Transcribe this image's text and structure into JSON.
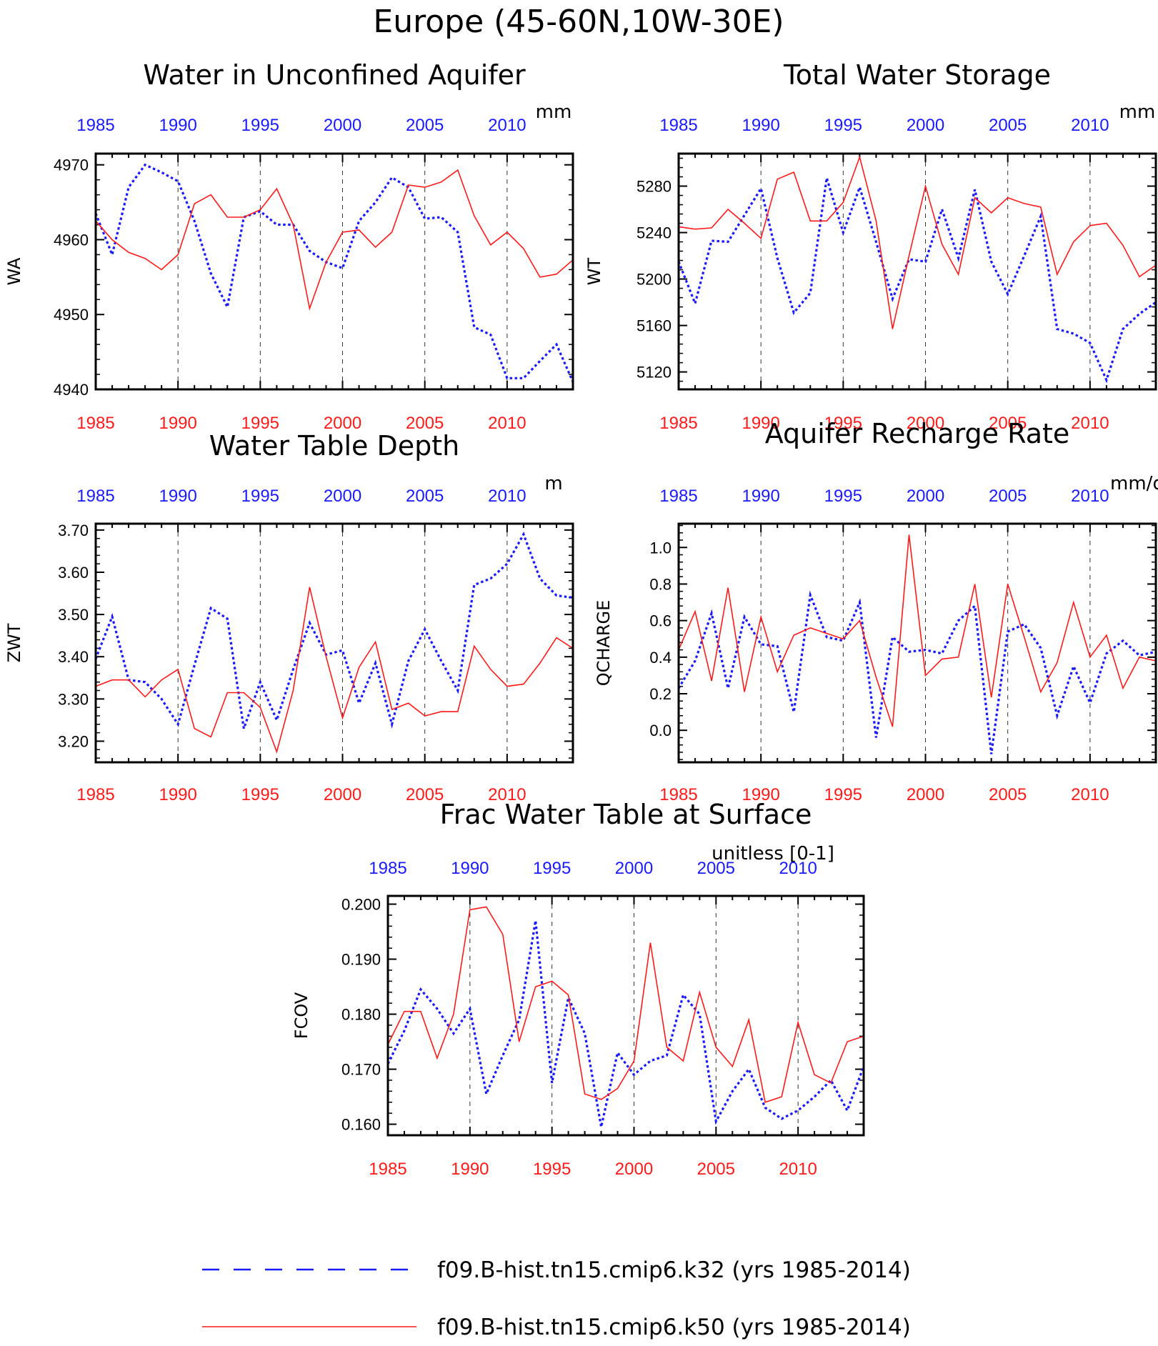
{
  "title": "Europe (45-60N,10W-30E)",
  "colors": {
    "k32": "#1a1aff",
    "k50": "#ff1a1a",
    "axis": "#000000",
    "grid": "#000000"
  },
  "legend": {
    "k32": "f09.B-hist.tn15.cmip6.k32 (yrs 1985-2014)",
    "k50": "f09.B-hist.tn15.cmip6.k50 (yrs 1985-2014)"
  },
  "chart_data": [
    {
      "type": "line",
      "title": "Water in Unconfined Aquifer",
      "ylabel": "WA",
      "units": "mm",
      "xlim": [
        1985,
        2014
      ],
      "ylim": [
        4940,
        4971.5
      ],
      "yticks": [
        "4940",
        "4950",
        "4960",
        "4970"
      ],
      "yticks_values": [
        4940,
        4950,
        4960,
        4970
      ],
      "xticks": [
        "1985",
        "1990",
        "1995",
        "2000",
        "2005",
        "2010"
      ],
      "x": [
        1985,
        1986,
        1987,
        1988,
        1989,
        1990,
        1991,
        1992,
        1993,
        1994,
        1995,
        1996,
        1997,
        1998,
        1999,
        2000,
        2001,
        2002,
        2003,
        2004,
        2005,
        2006,
        2007,
        2008,
        2009,
        2010,
        2011,
        2012,
        2013,
        2014
      ],
      "series": [
        {
          "key": "k32",
          "style": "dotted",
          "values": [
            4963.5,
            4958,
            4967,
            4970,
            4969,
            4967.8,
            4962.5,
            4955.5,
            4951,
            4963,
            4963.8,
            4962,
            4962,
            4958.5,
            4957,
            4956.2,
            4962.5,
            4965,
            4968.3,
            4967,
            4962.8,
            4963,
            4961,
            4948.3,
            4947.3,
            4941.5,
            4941.5,
            4943.8,
            4946,
            4941
          ]
        },
        {
          "key": "k50",
          "style": "solid",
          "values": [
            4962.5,
            4960,
            4958.3,
            4957.5,
            4956,
            4958,
            4964.8,
            4966,
            4963,
            4963,
            4964,
            4966.8,
            4962,
            4950.8,
            4957,
            4961,
            4961.3,
            4959,
            4961,
            4967.3,
            4967,
            4967.7,
            4969.3,
            4963.2,
            4959.3,
            4961,
            4958.8,
            4955,
            4955.4,
            4957.3
          ]
        }
      ]
    },
    {
      "type": "line",
      "title": "Total Water Storage",
      "ylabel": "WT",
      "units": "mm",
      "xlim": [
        1985,
        2014
      ],
      "ylim": [
        5105,
        5308
      ],
      "yticks": [
        "5120",
        "5160",
        "5200",
        "5240",
        "5280"
      ],
      "yticks_values": [
        5120,
        5160,
        5200,
        5240,
        5280
      ],
      "xticks": [
        "1985",
        "1990",
        "1995",
        "2000",
        "2005",
        "2010"
      ],
      "x": [
        1985,
        1986,
        1987,
        1988,
        1989,
        1990,
        1991,
        1992,
        1993,
        1994,
        1995,
        1996,
        1997,
        1998,
        1999,
        2000,
        2001,
        2002,
        2003,
        2004,
        2005,
        2006,
        2007,
        2008,
        2009,
        2010,
        2011,
        2012,
        2013,
        2014
      ],
      "series": [
        {
          "key": "k32",
          "style": "dotted",
          "values": [
            5215,
            5179,
            5233,
            5232,
            5255,
            5278,
            5218,
            5171,
            5188,
            5287,
            5240,
            5279,
            5232,
            5183,
            5217,
            5215,
            5260,
            5218,
            5277,
            5215,
            5187,
            5220,
            5254,
            5157,
            5153,
            5145,
            5113,
            5157,
            5170,
            5180
          ]
        },
        {
          "key": "k50",
          "style": "solid",
          "values": [
            5245,
            5243,
            5244,
            5260,
            5248,
            5235,
            5286,
            5292,
            5250,
            5250,
            5266,
            5305,
            5250,
            5157,
            5220,
            5280,
            5230,
            5204,
            5270,
            5257,
            5270,
            5265,
            5262,
            5204,
            5232,
            5246,
            5248,
            5229,
            5202,
            5212
          ]
        }
      ]
    },
    {
      "type": "line",
      "title": "Water Table Depth",
      "ylabel": "ZWT",
      "units": "m",
      "xlim": [
        1985,
        2014
      ],
      "ylim": [
        3.15,
        3.715
      ],
      "yticks": [
        "3.20",
        "3.30",
        "3.40",
        "3.50",
        "3.60",
        "3.70"
      ],
      "yticks_values": [
        3.2,
        3.3,
        3.4,
        3.5,
        3.6,
        3.7
      ],
      "xticks": [
        "1985",
        "1990",
        "1995",
        "2000",
        "2005",
        "2010"
      ],
      "x": [
        1985,
        1986,
        1987,
        1988,
        1989,
        1990,
        1991,
        1992,
        1993,
        1994,
        1995,
        1996,
        1997,
        1998,
        1999,
        2000,
        2001,
        2002,
        2003,
        2004,
        2005,
        2006,
        2007,
        2008,
        2009,
        2010,
        2011,
        2012,
        2013,
        2014
      ],
      "series": [
        {
          "key": "k32",
          "style": "dotted",
          "values": [
            3.395,
            3.495,
            3.345,
            3.34,
            3.3,
            3.24,
            3.38,
            3.515,
            3.49,
            3.23,
            3.34,
            3.25,
            3.37,
            3.48,
            3.405,
            3.415,
            3.29,
            3.385,
            3.24,
            3.39,
            3.465,
            3.39,
            3.32,
            3.57,
            3.585,
            3.62,
            3.69,
            3.585,
            3.545,
            3.54
          ]
        },
        {
          "key": "k50",
          "style": "solid",
          "values": [
            3.33,
            3.345,
            3.345,
            3.305,
            3.345,
            3.37,
            3.23,
            3.21,
            3.315,
            3.315,
            3.28,
            3.175,
            3.32,
            3.565,
            3.4,
            3.255,
            3.375,
            3.435,
            3.275,
            3.29,
            3.26,
            3.27,
            3.27,
            3.425,
            3.37,
            3.33,
            3.335,
            3.385,
            3.445,
            3.42
          ]
        }
      ]
    },
    {
      "type": "line",
      "title": "Aquifer Recharge Rate",
      "ylabel": "QCHARGE",
      "units": "mm/d",
      "xlim": [
        1985,
        2014
      ],
      "ylim": [
        -0.175,
        1.13
      ],
      "yticks": [
        "0.0",
        "0.2",
        "0.4",
        "0.6",
        "0.8",
        "1.0"
      ],
      "yticks_values": [
        0,
        0.2,
        0.4,
        0.6,
        0.8,
        1.0
      ],
      "xticks": [
        "1985",
        "1990",
        "1995",
        "2000",
        "2005",
        "2010"
      ],
      "x": [
        1985,
        1986,
        1987,
        1988,
        1989,
        1990,
        1991,
        1992,
        1993,
        1994,
        1995,
        1996,
        1997,
        1998,
        1999,
        2000,
        2001,
        2002,
        2003,
        2004,
        2005,
        2006,
        2007,
        2008,
        2009,
        2010,
        2011,
        2012,
        2013,
        2014
      ],
      "series": [
        {
          "key": "k32",
          "style": "dotted",
          "values": [
            0.23,
            0.38,
            0.64,
            0.23,
            0.62,
            0.47,
            0.46,
            0.1,
            0.74,
            0.51,
            0.49,
            0.7,
            -0.04,
            0.51,
            0.43,
            0.44,
            0.42,
            0.6,
            0.68,
            -0.13,
            0.54,
            0.58,
            0.45,
            0.08,
            0.35,
            0.15,
            0.42,
            0.49,
            0.41,
            0.43
          ]
        },
        {
          "key": "k50",
          "style": "solid",
          "values": [
            0.44,
            0.65,
            0.27,
            0.78,
            0.21,
            0.62,
            0.32,
            0.52,
            0.56,
            0.53,
            0.5,
            0.6,
            0.29,
            0.02,
            1.07,
            0.3,
            0.39,
            0.4,
            0.8,
            0.18,
            0.8,
            0.51,
            0.21,
            0.37,
            0.7,
            0.4,
            0.52,
            0.23,
            0.4,
            0.38
          ]
        }
      ]
    },
    {
      "type": "line",
      "title": "Frac Water Table at Surface",
      "ylabel": "FCOV",
      "units": "unitless [0-1]",
      "xlim": [
        1985,
        2014
      ],
      "ylim": [
        0.158,
        0.2015
      ],
      "yticks": [
        "0.160",
        "0.170",
        "0.180",
        "0.190",
        "0.200"
      ],
      "yticks_values": [
        0.16,
        0.17,
        0.18,
        0.19,
        0.2
      ],
      "xticks": [
        "1985",
        "1990",
        "1995",
        "2000",
        "2005",
        "2010"
      ],
      "x": [
        1985,
        1986,
        1987,
        1988,
        1989,
        1990,
        1991,
        1992,
        1993,
        1994,
        1995,
        1996,
        1997,
        1998,
        1999,
        2000,
        2001,
        2002,
        2003,
        2004,
        2005,
        2006,
        2007,
        2008,
        2009,
        2010,
        2011,
        2012,
        2013,
        2014
      ],
      "series": [
        {
          "key": "k32",
          "style": "dotted",
          "values": [
            0.171,
            0.177,
            0.1845,
            0.181,
            0.1765,
            0.181,
            0.1655,
            0.1725,
            0.179,
            0.197,
            0.1675,
            0.183,
            0.1765,
            0.1595,
            0.173,
            0.169,
            0.1715,
            0.1725,
            0.1835,
            0.18,
            0.1605,
            0.166,
            0.17,
            0.163,
            0.161,
            0.1625,
            0.165,
            0.168,
            0.1625,
            0.1705
          ]
        },
        {
          "key": "k50",
          "style": "solid",
          "values": [
            0.1745,
            0.1805,
            0.1805,
            0.172,
            0.18,
            0.199,
            0.1995,
            0.1945,
            0.175,
            0.185,
            0.186,
            0.1835,
            0.1655,
            0.1645,
            0.1665,
            0.1715,
            0.193,
            0.174,
            0.1715,
            0.184,
            0.174,
            0.1705,
            0.179,
            0.164,
            0.165,
            0.1785,
            0.169,
            0.1675,
            0.175,
            0.176
          ]
        }
      ]
    }
  ]
}
